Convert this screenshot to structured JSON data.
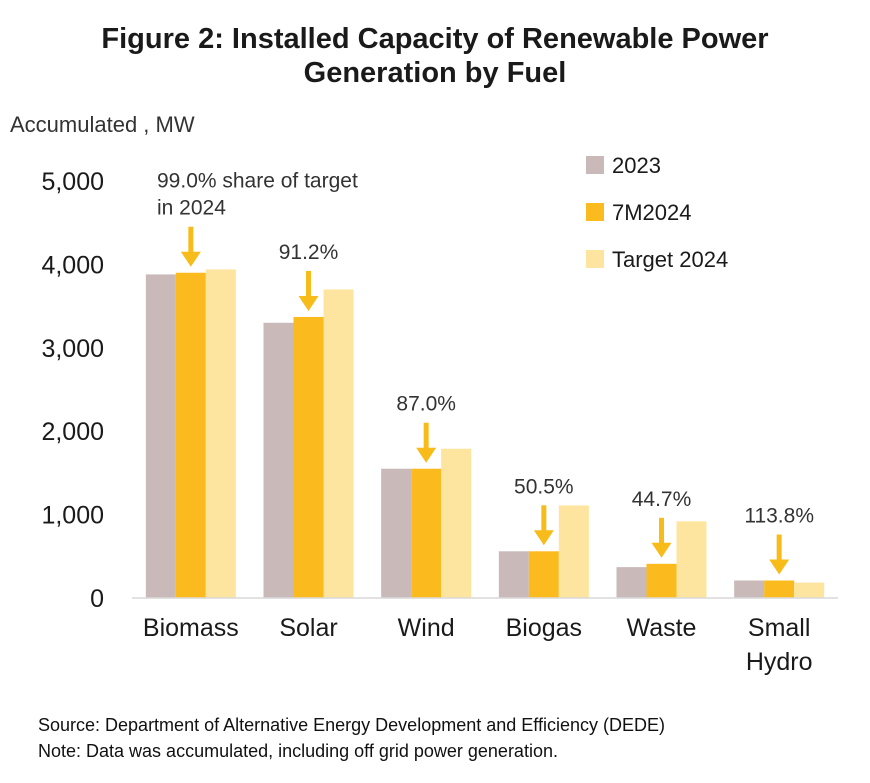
{
  "title_line1": "Figure 2: Installed Capacity of Renewable Power",
  "title_line2": "Generation by Fuel",
  "y_axis_title": "Accumulated , MW",
  "source": "Source: Department of Alternative Energy Development and Efficiency (DEDE)",
  "note": "Note:  Data was accumulated, including off grid power generation.",
  "chart_data": {
    "type": "bar",
    "categories": [
      "Biomass",
      "Solar",
      "Wind",
      "Biogas",
      "Waste",
      "Small Hydro"
    ],
    "category_lines": [
      [
        "Biomass"
      ],
      [
        "Solar"
      ],
      [
        "Wind"
      ],
      [
        "Biogas"
      ],
      [
        "Waste"
      ],
      [
        "Small",
        "Hydro"
      ]
    ],
    "series": [
      {
        "name": "2023",
        "color": "#c9b9b9",
        "values": [
          3880,
          3300,
          1550,
          560,
          370,
          210
        ]
      },
      {
        "name": "7M2024",
        "color": "#fbbb1f",
        "values": [
          3900,
          3370,
          1550,
          560,
          410,
          210
        ]
      },
      {
        "name": "Target 2024",
        "color": "#fde49f",
        "values": [
          3940,
          3700,
          1790,
          1110,
          920,
          185
        ]
      }
    ],
    "ylim": [
      0,
      5000
    ],
    "yticks": [
      0,
      1000,
      2000,
      3000,
      4000,
      5000
    ],
    "ytick_labels": [
      "0",
      "1,000",
      "2,000",
      "3,000",
      "4,000",
      "5,000"
    ],
    "annotations": [
      {
        "category": "Biomass",
        "lines": [
          "99.0% share of target",
          "in 2024"
        ]
      },
      {
        "category": "Solar",
        "lines": [
          "91.2%"
        ]
      },
      {
        "category": "Wind",
        "lines": [
          "87.0%"
        ]
      },
      {
        "category": "Biogas",
        "lines": [
          "50.5%"
        ]
      },
      {
        "category": "Waste",
        "lines": [
          "44.7%"
        ]
      },
      {
        "category": "Small Hydro",
        "lines": [
          "113.8%"
        ]
      }
    ],
    "arrow_color": "#f8bc1a",
    "legend_position": "top-right",
    "grid": false
  }
}
